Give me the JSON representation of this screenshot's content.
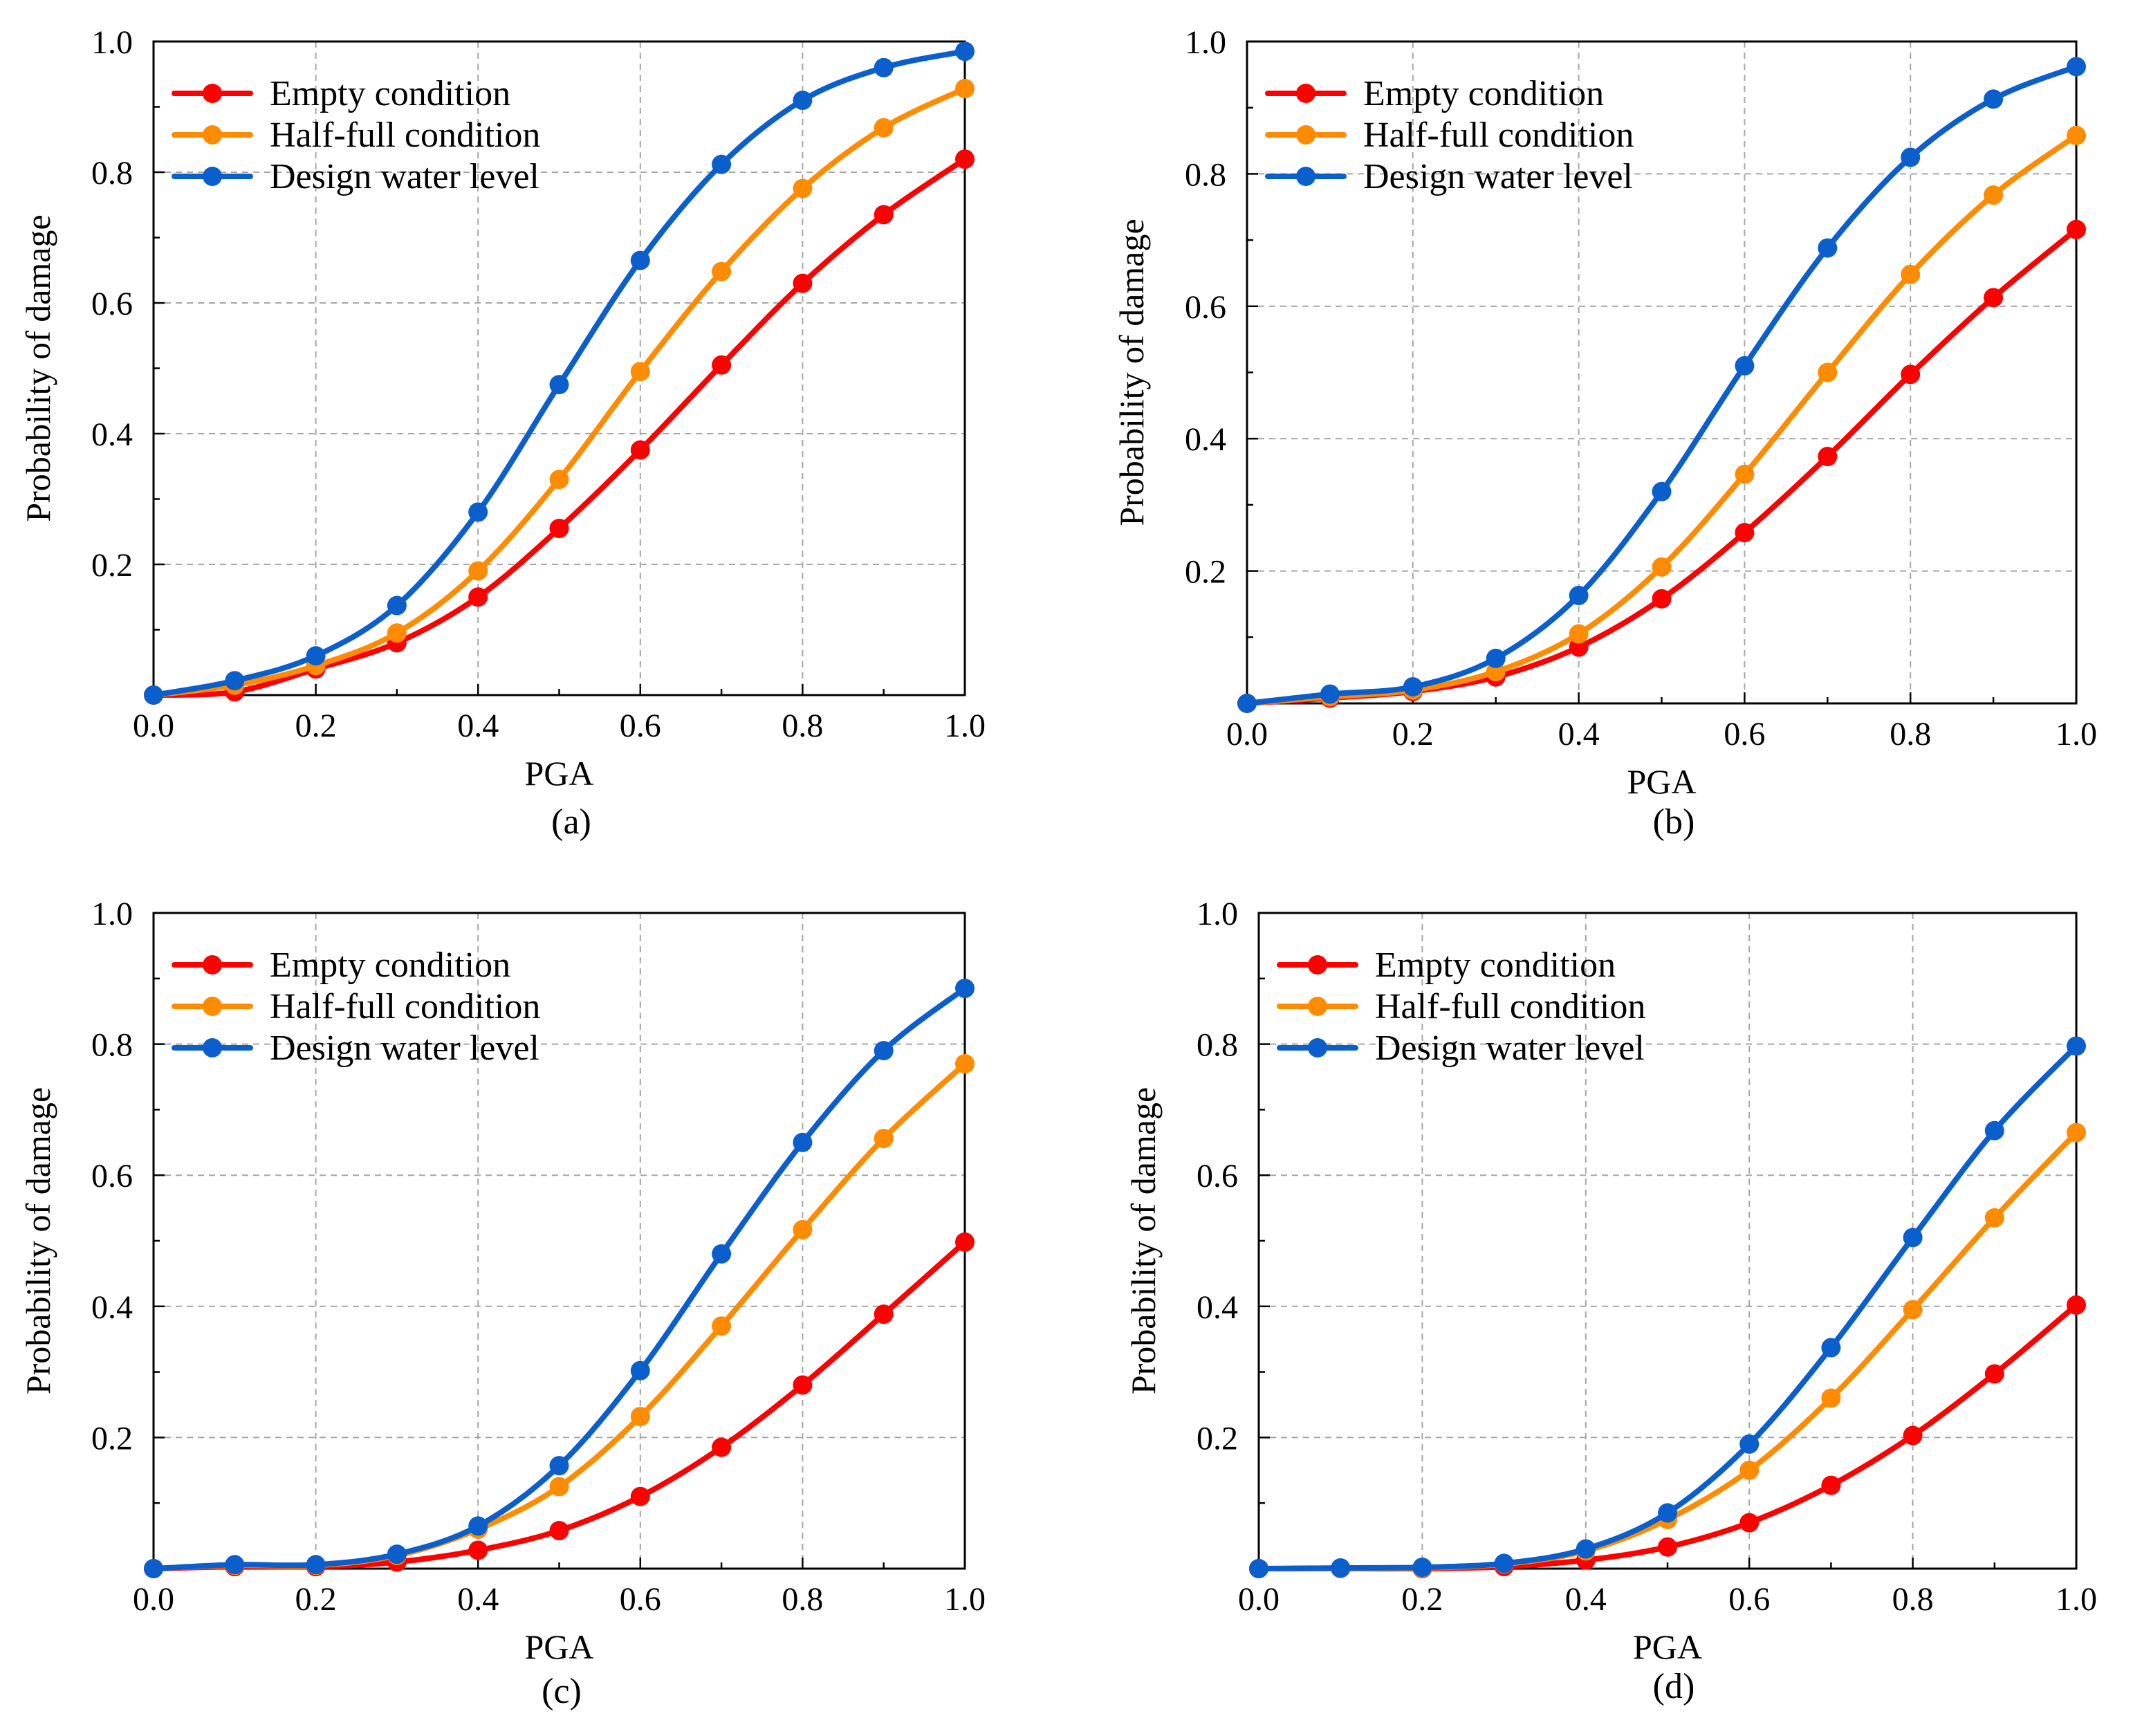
{
  "figure": {
    "colors": {
      "empty": "#ff0000",
      "half": "#ff8c00",
      "design": "#0a5fcc",
      "grid": "#a6a6a6"
    }
  },
  "chart_data": [
    {
      "panel_label": "(a)",
      "type": "line",
      "xlabel": "PGA",
      "ylabel": "Probability of damage",
      "xlim": [
        0.0,
        1.0
      ],
      "ylim": [
        0.0,
        1.0
      ],
      "xticks": [
        "0.0",
        "0.2",
        "0.4",
        "0.6",
        "0.8",
        "1.0"
      ],
      "yticks": [
        "0.2",
        "0.4",
        "0.6",
        "0.8",
        "1.0"
      ],
      "grid": true,
      "legend_position": "top-left",
      "x": [
        0.0,
        0.1,
        0.2,
        0.3,
        0.4,
        0.5,
        0.6,
        0.7,
        0.8,
        0.9,
        1.0
      ],
      "series": [
        {
          "name": "Empty condition",
          "key": "empty",
          "values": [
            0.0,
            0.005,
            0.04,
            0.08,
            0.15,
            0.255,
            0.375,
            0.505,
            0.63,
            0.735,
            0.82
          ]
        },
        {
          "name": "Half-full condition",
          "key": "half",
          "values": [
            0.0,
            0.015,
            0.045,
            0.095,
            0.19,
            0.33,
            0.495,
            0.648,
            0.775,
            0.868,
            0.928
          ]
        },
        {
          "name": "Design water level",
          "key": "design",
          "values": [
            0.0,
            0.022,
            0.06,
            0.137,
            0.28,
            0.475,
            0.665,
            0.812,
            0.91,
            0.96,
            0.985
          ]
        }
      ]
    },
    {
      "panel_label": "(b)",
      "type": "line",
      "xlabel": "PGA",
      "ylabel": "Probability of damage",
      "xlim": [
        0.0,
        1.0
      ],
      "ylim": [
        0.0,
        1.0
      ],
      "xticks": [
        "0.0",
        "0.2",
        "0.4",
        "0.6",
        "0.8",
        "1.0"
      ],
      "yticks": [
        "0.2",
        "0.4",
        "0.6",
        "0.8",
        "1.0"
      ],
      "grid": true,
      "legend_position": "top-left",
      "x": [
        0.0,
        0.1,
        0.2,
        0.3,
        0.4,
        0.5,
        0.6,
        0.7,
        0.8,
        0.9,
        1.0
      ],
      "series": [
        {
          "name": "Empty condition",
          "key": "empty",
          "values": [
            0.0,
            0.008,
            0.018,
            0.04,
            0.085,
            0.158,
            0.258,
            0.373,
            0.497,
            0.613,
            0.716
          ]
        },
        {
          "name": "Half-full condition",
          "key": "half",
          "values": [
            0.0,
            0.01,
            0.02,
            0.048,
            0.105,
            0.206,
            0.346,
            0.5,
            0.648,
            0.768,
            0.858
          ]
        },
        {
          "name": "Design water level",
          "key": "design",
          "values": [
            0.0,
            0.014,
            0.025,
            0.068,
            0.163,
            0.32,
            0.51,
            0.688,
            0.825,
            0.913,
            0.962
          ]
        }
      ]
    },
    {
      "panel_label": "(c)",
      "type": "line",
      "xlabel": "PGA",
      "ylabel": "Probability of damage",
      "xlim": [
        0.0,
        1.0
      ],
      "ylim": [
        0.0,
        1.0
      ],
      "xticks": [
        "0.0",
        "0.2",
        "0.4",
        "0.6",
        "0.8",
        "1.0"
      ],
      "yticks": [
        "0.2",
        "0.4",
        "0.6",
        "0.8",
        "1.0"
      ],
      "grid": true,
      "legend_position": "top-left",
      "x": [
        0.0,
        0.1,
        0.2,
        0.3,
        0.4,
        0.5,
        0.6,
        0.7,
        0.8,
        0.9,
        1.0
      ],
      "series": [
        {
          "name": "Empty condition",
          "key": "empty",
          "values": [
            0.0,
            0.003,
            0.003,
            0.01,
            0.028,
            0.058,
            0.11,
            0.185,
            0.28,
            0.388,
            0.498
          ]
        },
        {
          "name": "Half-full condition",
          "key": "half",
          "values": [
            0.0,
            0.005,
            0.005,
            0.02,
            0.06,
            0.125,
            0.232,
            0.37,
            0.517,
            0.656,
            0.77
          ]
        },
        {
          "name": "Design water level",
          "key": "design",
          "values": [
            0.0,
            0.006,
            0.006,
            0.022,
            0.065,
            0.157,
            0.302,
            0.48,
            0.65,
            0.79,
            0.885
          ]
        }
      ]
    },
    {
      "panel_label": "(d)",
      "type": "line",
      "xlabel": "PGA",
      "ylabel": "Probability of damage",
      "xlim": [
        0.0,
        1.0
      ],
      "ylim": [
        0.0,
        1.0
      ],
      "xticks": [
        "0.0",
        "0.2",
        "0.4",
        "0.6",
        "0.8",
        "1.0"
      ],
      "yticks": [
        "0.2",
        "0.4",
        "0.6",
        "0.8",
        "1.0"
      ],
      "grid": true,
      "legend_position": "top-left",
      "x": [
        0.0,
        0.1,
        0.2,
        0.3,
        0.4,
        0.5,
        0.6,
        0.7,
        0.8,
        0.9,
        1.0
      ],
      "series": [
        {
          "name": "Empty condition",
          "key": "empty",
          "values": [
            0.0,
            0.0,
            0.0,
            0.003,
            0.013,
            0.033,
            0.07,
            0.127,
            0.203,
            0.297,
            0.402
          ]
        },
        {
          "name": "Half-full condition",
          "key": "half",
          "values": [
            0.0,
            0.0,
            0.001,
            0.007,
            0.027,
            0.075,
            0.15,
            0.26,
            0.395,
            0.535,
            0.665
          ]
        },
        {
          "name": "Design water level",
          "key": "design",
          "values": [
            0.0,
            0.001,
            0.002,
            0.008,
            0.03,
            0.085,
            0.19,
            0.337,
            0.505,
            0.668,
            0.797
          ]
        }
      ]
    }
  ]
}
